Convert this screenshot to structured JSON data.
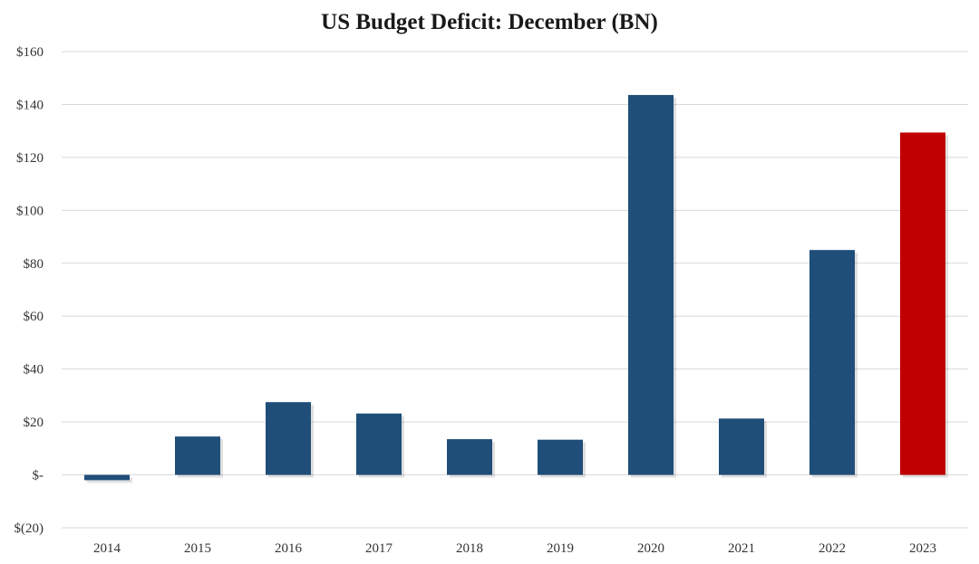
{
  "chart_data": {
    "type": "bar",
    "title": "US Budget Deficit: December  (BN)",
    "xlabel": "",
    "ylabel": "",
    "categories": [
      "2014",
      "2015",
      "2016",
      "2017",
      "2018",
      "2019",
      "2020",
      "2021",
      "2022",
      "2023"
    ],
    "values": [
      -2,
      14.5,
      27.5,
      23.2,
      13.5,
      13.3,
      143.6,
      21.3,
      85.0,
      129.4
    ],
    "ylim": [
      -20,
      160
    ],
    "yticks": [
      -20,
      0,
      20,
      40,
      60,
      80,
      100,
      120,
      140,
      160
    ],
    "ytick_labels": [
      "$(20)",
      "$-",
      "$20",
      "$40",
      "$60",
      "$80",
      "$100",
      "$120",
      "$140",
      "$160"
    ],
    "grid": true,
    "colors": {
      "default_bar": "#1f4e79",
      "highlight_bar": "#c00000",
      "grid": "#d9d9d9"
    },
    "highlight_category": "2023"
  }
}
